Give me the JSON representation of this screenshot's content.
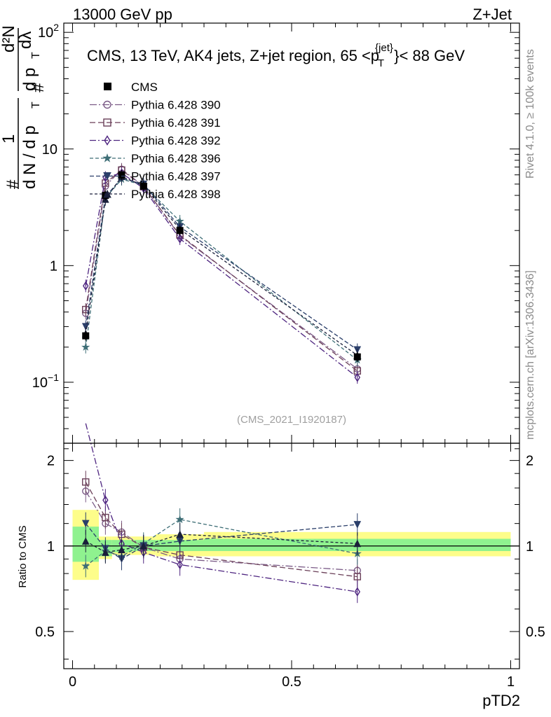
{
  "header": {
    "left": "13000 GeV pp",
    "right": "Z+Jet"
  },
  "side": {
    "rivet": "Rivet 4.1.0, ≥ 100k events",
    "mcplots": "mcplots.cern.ch [arXiv:1306.3436]"
  },
  "chart_data": {
    "type": "line",
    "title": "CMS, 13 TeV, AK4 jets, Z+jet region, 65 <p_T^{jet}< 88 GeV",
    "title_parts": {
      "main": "CMS, 13 TeV, AK4 jets, Z+jet region, 65 <p",
      "sup": "{jet}",
      "sub": "T",
      "tail": "}< 88 GeV"
    },
    "watermark": "(CMS_2021_I1920187)",
    "xlabel": "pTD2",
    "ylabel": "1/dN/dp_T  d²N/dp_T dλ",
    "ylabel_parts": {
      "one": "1",
      "hash": "#",
      "den": "d N / d p",
      "T": "T",
      "num": "d²N",
      "dp": "d p",
      "dl": "dλ"
    },
    "ratio_ylabel": "Ratio to CMS",
    "xlim": [
      -0.02,
      1.02
    ],
    "ylim": [
      0.03,
      120
    ],
    "ratio_ylim": [
      0.37,
      2.3
    ],
    "x_ticks": [
      {
        "v": 0,
        "label": "0"
      },
      {
        "v": 0.5,
        "label": "0.5"
      },
      {
        "v": 1,
        "label": "1"
      }
    ],
    "y_ticks": [
      {
        "v": 100,
        "label": "10",
        "sup": "2"
      },
      {
        "v": 10,
        "label": "10",
        "sup": ""
      },
      {
        "v": 1,
        "label": "1",
        "sup": ""
      },
      {
        "v": 0.1,
        "label": "10",
        "sup": "−1"
      }
    ],
    "ratio_ticks": [
      {
        "v": 2,
        "label": "2"
      },
      {
        "v": 1,
        "label": "1"
      },
      {
        "v": 0.5,
        "label": "0.5"
      }
    ],
    "x": [
      0.03,
      0.075,
      0.112,
      0.162,
      0.245,
      0.65
    ],
    "bin_edges": [
      0,
      0.06,
      0.09,
      0.135,
      0.19,
      0.3,
      1.0
    ],
    "cms": {
      "name": "CMS",
      "values": [
        0.25,
        4.0,
        6.0,
        4.8,
        2.0,
        0.165
      ]
    },
    "band_inner": [
      [
        0.88,
        1.17
      ],
      [
        0.92,
        1.05
      ],
      [
        0.95,
        1.05
      ],
      [
        0.96,
        1.05
      ],
      [
        0.96,
        1.05
      ],
      [
        0.96,
        1.06
      ]
    ],
    "band_outer": [
      [
        0.76,
        1.34
      ],
      [
        0.9,
        1.08
      ],
      [
        0.93,
        1.08
      ],
      [
        0.93,
        1.08
      ],
      [
        0.92,
        1.1
      ],
      [
        0.92,
        1.12
      ]
    ],
    "series": [
      {
        "name": "Pythia 6.428 390",
        "color": "#7b5b87",
        "marker": "circle",
        "dash": "10,3,2,3",
        "values": [
          0.39,
          4.8,
          6.7,
          4.8,
          1.8,
          0.13
        ],
        "ratio": [
          1.56,
          1.2,
          1.12,
          0.99,
          0.9,
          0.82
        ]
      },
      {
        "name": "Pythia 6.428 391",
        "color": "#6a3f58",
        "marker": "square",
        "dash": "8,4",
        "values": [
          0.42,
          5.1,
          6.6,
          4.75,
          1.83,
          0.125
        ],
        "ratio": [
          1.68,
          1.26,
          1.1,
          0.99,
          0.93,
          0.78
        ]
      },
      {
        "name": "Pythia 6.428 392",
        "color": "#4e2580",
        "marker": "diamond",
        "dash": "9,3,2,3",
        "values": [
          0.67,
          5.7,
          6.2,
          4.6,
          1.7,
          0.11
        ],
        "ratio": [
          2.7,
          1.45,
          1.02,
          0.95,
          0.86,
          0.69
        ]
      },
      {
        "name": "Pythia 6.428 396",
        "color": "#3e6e76",
        "marker": "star",
        "dash": "5,3",
        "values": [
          0.2,
          3.8,
          5.5,
          4.9,
          2.4,
          0.155
        ],
        "ratio": [
          0.85,
          0.96,
          0.92,
          1.02,
          1.24,
          0.94
        ]
      },
      {
        "name": "Pythia 6.428 397",
        "color": "#2b3f6a",
        "marker": "triangle-down",
        "dash": "6,3",
        "values": [
          0.3,
          3.9,
          5.6,
          5.0,
          2.15,
          0.19
        ],
        "ratio": [
          1.2,
          0.98,
          0.9,
          1.0,
          1.04,
          1.19
        ]
      },
      {
        "name": "Pythia 6.428 398",
        "color": "#1a1f3a",
        "marker": "triangle-up",
        "dash": "4,3",
        "values": [
          0.26,
          3.7,
          5.8,
          4.85,
          2.05,
          0.17
        ],
        "ratio": [
          1.04,
          0.95,
          0.97,
          1.0,
          1.1,
          1.02
        ]
      }
    ]
  }
}
